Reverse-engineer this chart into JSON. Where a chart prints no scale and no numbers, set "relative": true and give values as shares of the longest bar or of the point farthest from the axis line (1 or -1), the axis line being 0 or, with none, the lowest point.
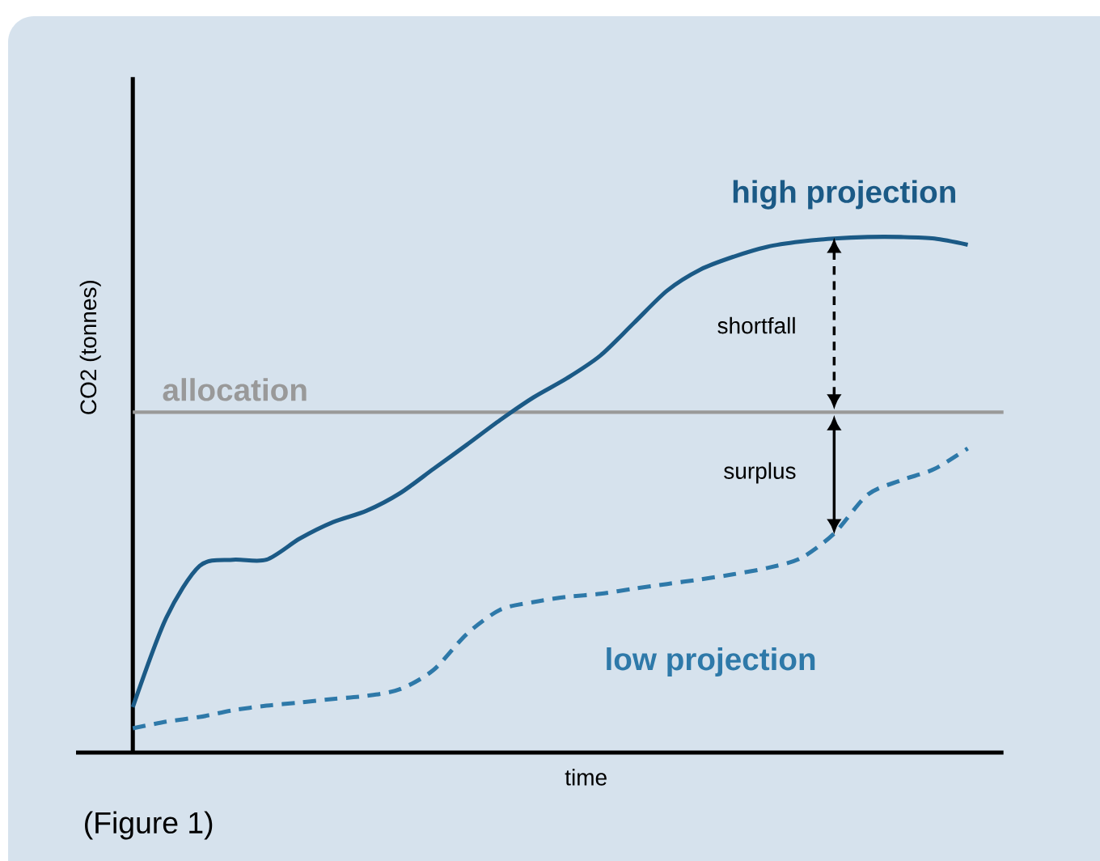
{
  "chart_data": {
    "type": "line",
    "relative": true,
    "xlabel": "time",
    "ylabel": "CO2 (tonnes)",
    "categories": [
      null,
      null,
      null,
      null,
      null,
      null,
      null,
      null,
      null,
      null,
      null,
      null,
      null,
      null,
      null,
      null,
      null,
      null,
      null,
      null,
      null,
      null,
      null,
      null,
      null,
      null
    ],
    "series": [
      {
        "name": "high projection",
        "color": "#1b5a86",
        "line_style": "solid",
        "values": [
          0.088,
          0.261,
          0.362,
          0.374,
          0.374,
          0.415,
          0.447,
          0.469,
          0.503,
          0.55,
          0.597,
          0.645,
          0.689,
          0.726,
          0.77,
          0.833,
          0.896,
          0.937,
          0.962,
          0.981,
          0.991,
          0.997,
          1,
          1,
          0.997,
          0.985
        ]
      },
      {
        "name": "low projection",
        "color": "#2e79a9",
        "line_style": "dashed",
        "values": [
          0.047,
          0.06,
          0.069,
          0.082,
          0.091,
          0.097,
          0.104,
          0.11,
          0.123,
          0.16,
          0.23,
          0.277,
          0.292,
          0.302,
          0.308,
          0.318,
          0.327,
          0.336,
          0.346,
          0.358,
          0.377,
          0.425,
          0.5,
          0.528,
          0.55,
          0.59
        ]
      }
    ],
    "ref_lines": [
      {
        "axis": "y",
        "value": 0.66,
        "label": "allocation",
        "color": "#999999"
      }
    ],
    "annotations": [
      "shortfall",
      "surplus",
      "(Figure 1)"
    ],
    "marker": "none"
  }
}
